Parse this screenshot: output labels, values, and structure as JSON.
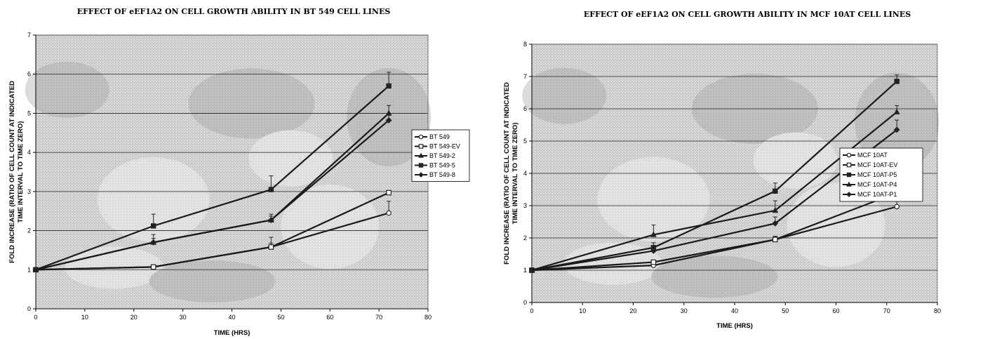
{
  "chart_data": [
    {
      "type": "line",
      "title": "EFFECT OF eEF1A2 ON CELL GROWTH ABILITY IN BT 549 CELL LINES",
      "xlabel": "TIME (HRS)",
      "ylabel_lines": [
        "FOLD INCREASE (RATIO OF CELL COUNT AT INDICATED",
        "TIME INTERVAL TO TIME ZERO)"
      ],
      "xlim": [
        0,
        80
      ],
      "ylim": [
        0,
        7
      ],
      "xticks": [
        0,
        10,
        20,
        30,
        40,
        50,
        60,
        70,
        80
      ],
      "yticks": [
        0,
        1,
        2,
        3,
        4,
        5,
        6,
        7
      ],
      "grid": "horizontal",
      "legend_position": "right",
      "x": [
        0,
        24,
        48,
        72
      ],
      "series": [
        {
          "name": "BT 549",
          "marker": "circle-open",
          "values": [
            1.0,
            1.07,
            1.58,
            2.45
          ],
          "errors": [
            0,
            0.05,
            0.1,
            0.3
          ]
        },
        {
          "name": "BT 549-EV",
          "marker": "square-open",
          "values": [
            1.0,
            1.07,
            1.58,
            2.97
          ],
          "errors": [
            0,
            0.05,
            0.25,
            0.05
          ]
        },
        {
          "name": "BT 549-2",
          "marker": "triangle",
          "values": [
            1.0,
            1.7,
            2.27,
            5.0
          ],
          "errors": [
            0,
            0.2,
            0.15,
            0.2
          ]
        },
        {
          "name": "BT 549-5",
          "marker": "square",
          "values": [
            1.0,
            2.12,
            3.05,
            5.7
          ],
          "errors": [
            0,
            0.3,
            0.35,
            0.35
          ]
        },
        {
          "name": "BT 549-8",
          "marker": "diamond",
          "values": [
            1.0,
            1.7,
            2.27,
            4.82
          ],
          "errors": [
            0,
            0.1,
            0.1,
            0.15
          ]
        }
      ]
    },
    {
      "type": "line",
      "title": "EFFECT OF eEF1A2 ON CELL GROWTH ABILITY IN MCF 10AT CELL LINES",
      "xlabel": "TIME (HRS)",
      "ylabel_lines": [
        "FOLD INCREASE (RATIO OF CELL COUNT AT INDICATED",
        "TIME INTERVAL TO TIME ZERO)"
      ],
      "xlim": [
        0,
        80
      ],
      "ylim": [
        0,
        8
      ],
      "xticks": [
        0,
        10,
        20,
        30,
        40,
        50,
        60,
        70,
        80
      ],
      "yticks": [
        0,
        1,
        2,
        3,
        4,
        5,
        6,
        7,
        8
      ],
      "grid": "horizontal",
      "legend_position": "right",
      "x": [
        0,
        24,
        48,
        72
      ],
      "series": [
        {
          "name": "MCF 10AT",
          "marker": "circle-open",
          "values": [
            1.0,
            1.15,
            1.95,
            2.97
          ],
          "errors": [
            0,
            0.05,
            0.1,
            0.3
          ]
        },
        {
          "name": "MCF 10AT-EV",
          "marker": "square-open",
          "values": [
            1.0,
            1.25,
            1.95,
            3.4
          ],
          "errors": [
            0,
            0.05,
            0.1,
            0.1
          ]
        },
        {
          "name": "MCF 10AT-P5",
          "marker": "square",
          "values": [
            1.0,
            1.7,
            3.45,
            6.85
          ],
          "errors": [
            0,
            0.15,
            0.25,
            0.2
          ]
        },
        {
          "name": "MCF 10AT-P4",
          "marker": "triangle",
          "values": [
            1.0,
            2.1,
            2.85,
            5.9
          ],
          "errors": [
            0,
            0.3,
            0.3,
            0.2
          ]
        },
        {
          "name": "MCF 10AT-P1",
          "marker": "diamond",
          "values": [
            1.0,
            1.6,
            2.45,
            5.35
          ],
          "errors": [
            0,
            0.15,
            0.2,
            0.3
          ]
        }
      ]
    }
  ]
}
